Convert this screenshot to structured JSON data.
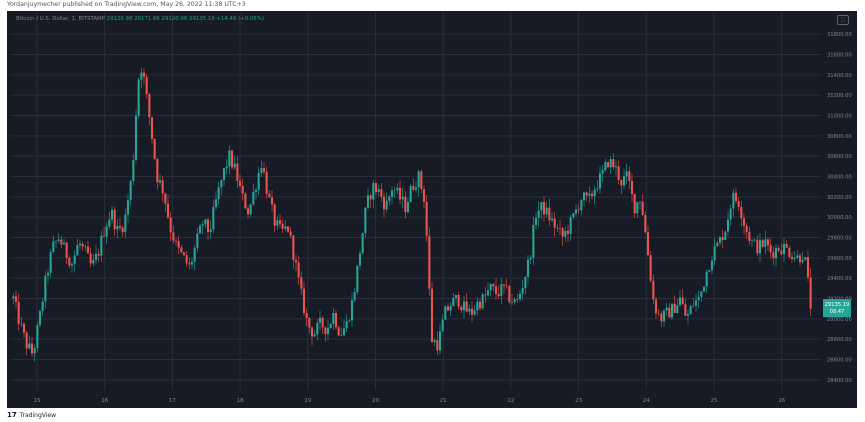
{
  "header": {
    "published_text": "Yordanjuymecher published on TradingView.com, May 26, 2022 11:38 UTC+3"
  },
  "legend": {
    "symbol": "Bitcoin / U.S. Dollar, 1, BITSTAMP",
    "ohlc": "29120.98  29171.66  29120.98  29135.19  +14.49 (+0.05%)"
  },
  "badge": {
    "price": "29135.19",
    "timer": "08:47",
    "color": "#26a69a"
  },
  "colors": {
    "background": "#171b26",
    "grid": "#2a2e39",
    "up": "#26a69a",
    "down": "#ef5350",
    "axis_text": "#7d8494"
  },
  "footer": {
    "brand": "TradingView",
    "logo_icon": "tradingview-logo-icon"
  },
  "chart_data": {
    "type": "candlestick",
    "title": "Bitcoin / U.S. Dollar, 1, BITSTAMP",
    "y_ticks": [
      "31800.00",
      "31600.00",
      "31400.00",
      "31200.00",
      "31000.00",
      "30800.00",
      "30600.00",
      "30400.00",
      "30200.00",
      "30000.00",
      "29800.00",
      "29600.00",
      "29400.00",
      "29200.00",
      "29000.00",
      "28800.00",
      "28600.00",
      "28400.00"
    ],
    "x_ticks": [
      "15",
      "16",
      "17",
      "18",
      "19",
      "20",
      "21",
      "22",
      "23",
      "24",
      "25",
      "26",
      "15:"
    ],
    "ylim": [
      28300,
      31900
    ],
    "last_price": 29135.19,
    "grid": true,
    "path_points": [
      [
        0,
        29200
      ],
      [
        2,
        28950
      ],
      [
        4,
        28750
      ],
      [
        6,
        28650
      ],
      [
        8,
        29000
      ],
      [
        10,
        29400
      ],
      [
        12,
        29700
      ],
      [
        14,
        29800
      ],
      [
        16,
        29650
      ],
      [
        18,
        29550
      ],
      [
        20,
        29750
      ],
      [
        22,
        29650
      ],
      [
        24,
        29500
      ],
      [
        26,
        29650
      ],
      [
        28,
        29900
      ],
      [
        30,
        30050
      ],
      [
        32,
        29850
      ],
      [
        34,
        29950
      ],
      [
        36,
        30350
      ],
      [
        37,
        30700
      ],
      [
        38,
        31300
      ],
      [
        39,
        31500
      ],
      [
        40,
        31350
      ],
      [
        42,
        30900
      ],
      [
        44,
        30400
      ],
      [
        46,
        30250
      ],
      [
        48,
        29900
      ],
      [
        50,
        29700
      ],
      [
        52,
        29600
      ],
      [
        54,
        29500
      ],
      [
        56,
        29750
      ],
      [
        58,
        29950
      ],
      [
        60,
        29850
      ],
      [
        62,
        30150
      ],
      [
        64,
        30400
      ],
      [
        66,
        30600
      ],
      [
        68,
        30450
      ],
      [
        70,
        30200
      ],
      [
        72,
        30050
      ],
      [
        74,
        30300
      ],
      [
        76,
        30550
      ],
      [
        78,
        30200
      ],
      [
        80,
        29950
      ],
      [
        82,
        29850
      ],
      [
        84,
        29900
      ],
      [
        86,
        29600
      ],
      [
        88,
        29250
      ],
      [
        90,
        28950
      ],
      [
        92,
        28850
      ],
      [
        94,
        28950
      ],
      [
        96,
        28900
      ],
      [
        98,
        29050
      ],
      [
        100,
        28850
      ],
      [
        102,
        28950
      ],
      [
        104,
        29200
      ],
      [
        106,
        29650
      ],
      [
        108,
        30100
      ],
      [
        110,
        30300
      ],
      [
        112,
        30250
      ],
      [
        114,
        30100
      ],
      [
        116,
        30300
      ],
      [
        118,
        30200
      ],
      [
        120,
        30100
      ],
      [
        122,
        30300
      ],
      [
        124,
        30400
      ],
      [
        126,
        30150
      ],
      [
        128,
        28800
      ],
      [
        130,
        28750
      ],
      [
        132,
        29050
      ],
      [
        134,
        29150
      ],
      [
        136,
        29200
      ],
      [
        138,
        29100
      ],
      [
        140,
        29050
      ],
      [
        142,
        29150
      ],
      [
        144,
        29200
      ],
      [
        146,
        29300
      ],
      [
        148,
        29250
      ],
      [
        150,
        29300
      ],
      [
        152,
        29200
      ],
      [
        154,
        29150
      ],
      [
        156,
        29350
      ],
      [
        158,
        29600
      ],
      [
        160,
        30050
      ],
      [
        162,
        30100
      ],
      [
        164,
        30000
      ],
      [
        166,
        29900
      ],
      [
        168,
        29800
      ],
      [
        170,
        29900
      ],
      [
        172,
        30050
      ],
      [
        174,
        30200
      ],
      [
        176,
        30150
      ],
      [
        178,
        30300
      ],
      [
        180,
        30400
      ],
      [
        182,
        30550
      ],
      [
        184,
        30500
      ],
      [
        186,
        30350
      ],
      [
        188,
        30400
      ],
      [
        190,
        30100
      ],
      [
        192,
        30200
      ],
      [
        194,
        29700
      ],
      [
        196,
        29150
      ],
      [
        198,
        29000
      ],
      [
        200,
        29050
      ],
      [
        202,
        29100
      ],
      [
        204,
        29200
      ],
      [
        206,
        29000
      ],
      [
        208,
        29150
      ],
      [
        210,
        29200
      ],
      [
        212,
        29450
      ],
      [
        214,
        29650
      ],
      [
        216,
        29750
      ],
      [
        218,
        29900
      ],
      [
        220,
        30200
      ],
      [
        222,
        30150
      ],
      [
        224,
        29900
      ],
      [
        226,
        29750
      ],
      [
        228,
        29700
      ],
      [
        230,
        29750
      ],
      [
        232,
        29650
      ],
      [
        234,
        29700
      ],
      [
        236,
        29700
      ],
      [
        238,
        29650
      ],
      [
        240,
        29600
      ],
      [
        242,
        29650
      ],
      [
        243,
        29400
      ],
      [
        244,
        29135
      ]
    ]
  }
}
